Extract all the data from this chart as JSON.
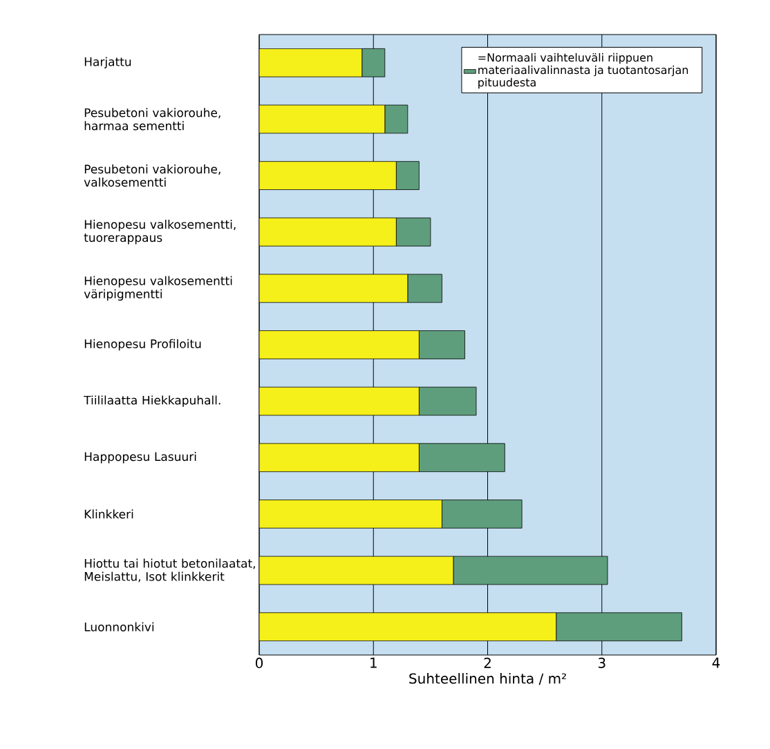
{
  "chart_data": {
    "type": "bar",
    "orientation": "horizontal",
    "stacked": true,
    "xlabel": "Suhteellinen hinta / m²",
    "categories": [
      "Harjattu",
      "Pesubetoni vakiorouhe, harmaa sementti",
      "Pesubetoni vakiorouhe, valkosementti",
      "Hienopesu valkosementti, tuorerappaus",
      "Hienopesu valkosementti väripigmentti",
      "Hienopesu Profiloitu",
      "Tiililaatta Hiekkapuhall.",
      "Happopesu Lasuuri",
      "Klinkkeri",
      "Hiottu tai hiotut betonilaatat, Meislattu, Isot klinkkerit",
      "Luonnonkivi"
    ],
    "series": [
      {
        "color": "#f5ef1a",
        "values": [
          0.9,
          1.1,
          1.2,
          1.2,
          1.3,
          1.4,
          1.4,
          1.4,
          1.6,
          1.7,
          2.6
        ]
      },
      {
        "name": "=Normaali vaihteluväli riippuen materiaalivalinnasta ja tuotantosarjan pituudesta",
        "color": "#5e9e7c",
        "values": [
          0.2,
          0.2,
          0.2,
          0.3,
          0.3,
          0.4,
          0.5,
          0.75,
          0.7,
          1.35,
          1.1
        ]
      }
    ],
    "xlim": [
      0,
      4
    ],
    "xticks": [
      0,
      1,
      2,
      3,
      4
    ],
    "grid": "x",
    "legend": "top right"
  }
}
